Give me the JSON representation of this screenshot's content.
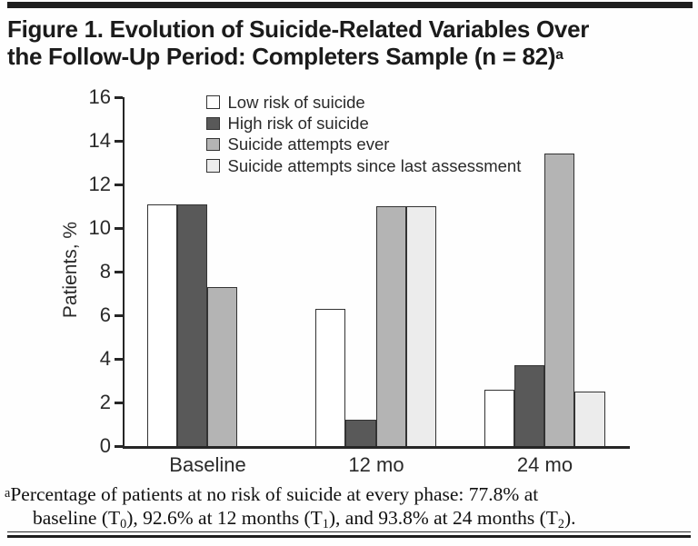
{
  "figure": {
    "title_line1": "Figure 1. Evolution of Suicide-Related Variables Over",
    "title_line2": "the Follow-Up Period: Completers Sample (n = 82)",
    "title_superscript": "a"
  },
  "chart_data": {
    "type": "bar",
    "title": "",
    "xlabel": "",
    "ylabel": "Patients, %",
    "ylim": [
      0,
      16
    ],
    "ytick_step": 2,
    "grid": false,
    "legend_position": "top-center-inside",
    "categories": [
      "Baseline",
      "12 mo",
      "24 mo"
    ],
    "series": [
      {
        "name": "Low risk of suicide",
        "color": "#ffffff",
        "values": [
          11.1,
          6.3,
          2.6
        ]
      },
      {
        "name": "High risk of suicide",
        "color": "#595959",
        "values": [
          11.1,
          1.2,
          3.7
        ]
      },
      {
        "name": "Suicide attempts ever",
        "color": "#b4b4b4",
        "values": [
          7.3,
          11.0,
          13.4
        ]
      },
      {
        "name": "Suicide attempts since last assessment",
        "color": "#ececec",
        "values": [
          null,
          11.0,
          2.5
        ]
      }
    ],
    "bar_border_color": "#333333",
    "axis_color": "#262626"
  },
  "footnote": {
    "marker": "a",
    "line1": "Percentage of patients at no risk of suicide at every phase: 77.8% at",
    "line2": {
      "p1": "baseline (T",
      "s1": "0",
      "p2": "), 92.6% at 12 months (T",
      "s2": "1",
      "p3": "), and 93.8% at 24 months (T",
      "s3": "2",
      "p4": ")."
    }
  }
}
